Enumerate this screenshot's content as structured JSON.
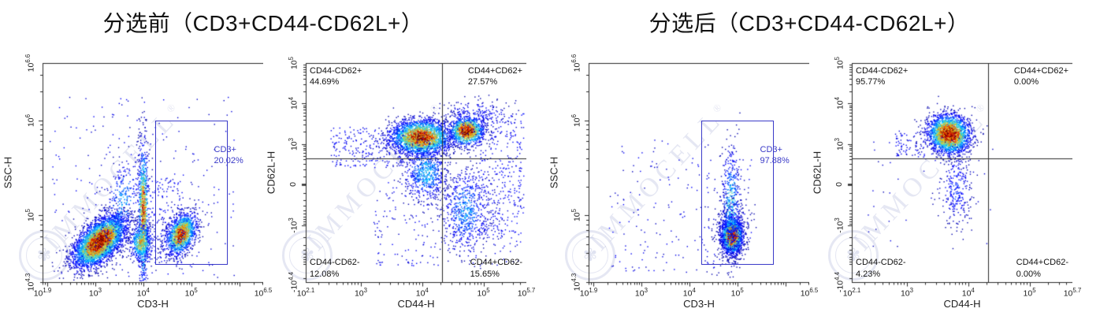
{
  "watermark": {
    "text": "IMMOCELL",
    "registered": "®"
  },
  "colors": {
    "gate": "#3a3ac8",
    "axis": "#2a2a2a",
    "quadrant_line": "#2a2a2a",
    "label_text": "#111111",
    "watermark": "#6273b9",
    "background": "#ffffff"
  },
  "panels": [
    {
      "title": "分选前（CD3+CD44-CD62L+）",
      "plot_refs": [
        0,
        1
      ]
    },
    {
      "title": "分选后（CD3+CD44-CD62L+）",
      "plot_refs": [
        2,
        3
      ]
    }
  ],
  "chart_data": [
    {
      "type": "scatter",
      "style": "flow-pseudocolor-density",
      "xlabel": "CD3-H",
      "ylabel": "SSC-H",
      "x_scale": {
        "kind": "log",
        "min_exp": 1.9,
        "max_exp": 6.5
      },
      "y_scale": {
        "kind": "log",
        "min_exp": 4.3,
        "max_exp": 6.6
      },
      "x_ticks": [
        {
          "label": "10^1.9",
          "exp": 1.9
        },
        {
          "label": "10^3",
          "exp": 3
        },
        {
          "label": "10^4",
          "exp": 4
        },
        {
          "label": "10^5",
          "exp": 5
        },
        {
          "label": "10^6.5",
          "exp": 6.5
        }
      ],
      "y_ticks": [
        {
          "label": "10^4.3",
          "exp": 4.3
        },
        {
          "label": "10^5",
          "exp": 5
        },
        {
          "label": "10^6",
          "exp": 6
        },
        {
          "label": "10^6.6",
          "exp": 6.6
        }
      ],
      "gate": {
        "name": "CD3+",
        "percent": "20.02%",
        "x_from_exp": 4.25,
        "x_to_exp": 5.72,
        "y_from_exp": 4.5,
        "y_to_exp": 6.0
      },
      "populations": [
        {
          "kind": "gauss",
          "cx": 3.08,
          "cy": 4.73,
          "sx": 0.27,
          "sy": 0.11,
          "shear": 0.28,
          "n": 4200,
          "peak": 1.0
        },
        {
          "kind": "gauss",
          "cx": 3.55,
          "cy": 5.15,
          "sx": 0.22,
          "sy": 0.22,
          "shear": 0.5,
          "n": 320,
          "peak": 0.3
        },
        {
          "kind": "gauss",
          "cx": 3.99,
          "cy": 5.02,
          "sx": 0.055,
          "sy": 0.38,
          "shear": 0,
          "n": 950,
          "peak": 0.8
        },
        {
          "kind": "gauss",
          "cx": 3.95,
          "cy": 4.72,
          "sx": 0.12,
          "sy": 0.1,
          "shear": 0,
          "n": 520,
          "peak": 0.6
        },
        {
          "kind": "gauss",
          "cx": 4.78,
          "cy": 4.81,
          "sx": 0.16,
          "sy": 0.1,
          "shear": 0.25,
          "n": 1500,
          "peak": 0.85
        },
        {
          "kind": "uniform",
          "x0": 2.0,
          "x1": 5.9,
          "y0": 4.35,
          "y1": 6.25,
          "n": 240,
          "peak": 0.07
        },
        {
          "kind": "uniform",
          "x0": 4.05,
          "x1": 4.85,
          "y0": 4.5,
          "y1": 5.4,
          "n": 190,
          "peak": 0.1
        }
      ]
    },
    {
      "type": "scatter",
      "style": "flow-pseudocolor-density",
      "xlabel": "CD44-H",
      "ylabel": "CD62L-H",
      "x_scale": {
        "kind": "log",
        "min_exp": 2.1,
        "max_exp": 5.7
      },
      "y_scale": {
        "kind": "biexp",
        "min": -25119,
        "max": 100000,
        "lin": 200
      },
      "x_ticks": [
        {
          "label": "10^2.1",
          "exp": 2.1
        },
        {
          "label": "10^3",
          "exp": 3
        },
        {
          "label": "10^4",
          "exp": 4
        },
        {
          "label": "10^5",
          "exp": 5
        },
        {
          "label": "10^5.7",
          "exp": 5.7
        }
      ],
      "y_ticks": [
        {
          "label": "10^5",
          "value": 100000
        },
        {
          "label": "10^4",
          "value": 10000
        },
        {
          "label": "10^3",
          "value": 1000
        },
        {
          "label": "0",
          "value": 0
        },
        {
          "label": "-10^3",
          "value": -1000
        },
        {
          "label": "-10^4.4",
          "value": -25119
        }
      ],
      "quadrant": {
        "x_value": 21000,
        "y_value": 430,
        "labels": [
          {
            "pos": "tl",
            "name": "CD44-CD62+",
            "percent": "44.69%"
          },
          {
            "pos": "tr",
            "name": "CD44+CD62+",
            "percent": "27.57%"
          },
          {
            "pos": "bl",
            "name": "CD44-CD62-",
            "percent": "12.08%"
          },
          {
            "pos": "br",
            "name": "CD44+CD62-",
            "percent": "15.65%"
          }
        ]
      },
      "populations": [
        {
          "kind": "gauss",
          "cx": 3.97,
          "cy": 2.71,
          "sx": 0.25,
          "sy": 0.5,
          "shear": 0,
          "n": 2600,
          "peak": 0.9
        },
        {
          "kind": "gauss",
          "cx": 4.05,
          "cy": 0.7,
          "sx": 0.18,
          "sy": 0.8,
          "shear": 0,
          "n": 650,
          "peak": 0.35
        },
        {
          "kind": "gauss",
          "cx": 4.72,
          "cy": 3.09,
          "sx": 0.14,
          "sy": 0.42,
          "shear": 0,
          "n": 1150,
          "peak": 0.97
        },
        {
          "kind": "gauss",
          "cx": 4.7,
          "cy": -1.4,
          "sx": 0.2,
          "sy": 1.2,
          "shear": 0,
          "n": 650,
          "peak": 0.3
        },
        {
          "kind": "gauss",
          "cx": 4.85,
          "cy": 4.0,
          "sx": 0.3,
          "sy": 0.5,
          "shear": 0,
          "n": 200,
          "peak": 0.15
        },
        {
          "kind": "uniform",
          "x0": 4.9,
          "x1": 5.65,
          "y0": -3.0,
          "y1": 4.2,
          "n": 330,
          "peak": 0.1
        },
        {
          "kind": "uniform",
          "x0": 2.5,
          "x1": 3.7,
          "y0": 1.0,
          "y1": 3.3,
          "n": 240,
          "peak": 0.1
        },
        {
          "kind": "uniform",
          "x0": 3.2,
          "x1": 5.6,
          "y0": -4.6,
          "y1": 0.2,
          "n": 240,
          "peak": 0.08
        }
      ]
    },
    {
      "type": "scatter",
      "style": "flow-pseudocolor-density",
      "xlabel": "CD3-H",
      "ylabel": "SSC-H",
      "x_scale": {
        "kind": "log",
        "min_exp": 1.9,
        "max_exp": 6.5
      },
      "y_scale": {
        "kind": "log",
        "min_exp": 4.3,
        "max_exp": 6.6
      },
      "x_ticks": [
        {
          "label": "10^1.9",
          "exp": 1.9
        },
        {
          "label": "10^3",
          "exp": 3
        },
        {
          "label": "10^4",
          "exp": 4
        },
        {
          "label": "10^5",
          "exp": 5
        },
        {
          "label": "10^6.5",
          "exp": 6.5
        }
      ],
      "y_ticks": [
        {
          "label": "10^4.3",
          "exp": 4.3
        },
        {
          "label": "10^5",
          "exp": 5
        },
        {
          "label": "10^6",
          "exp": 6
        },
        {
          "label": "10^6.6",
          "exp": 6.6
        }
      ],
      "gate": {
        "name": "CD3+",
        "percent": "97.88%",
        "x_from_exp": 4.25,
        "x_to_exp": 5.72,
        "y_from_exp": 4.5,
        "y_to_exp": 6.0
      },
      "populations": [
        {
          "kind": "gauss",
          "cx": 4.88,
          "cy": 4.79,
          "sx": 0.11,
          "sy": 0.095,
          "shear": 0,
          "n": 1800,
          "peak": 1.0
        },
        {
          "kind": "gauss",
          "cx": 4.86,
          "cy": 5.12,
          "sx": 0.1,
          "sy": 0.3,
          "shear": 0,
          "n": 470,
          "peak": 0.42
        },
        {
          "kind": "gauss",
          "cx": 4.88,
          "cy": 4.86,
          "sx": 0.2,
          "sy": 0.18,
          "shear": 0,
          "n": 280,
          "peak": 0.15
        },
        {
          "kind": "uniform",
          "x0": 2.3,
          "x1": 4.4,
          "y0": 4.4,
          "y1": 5.8,
          "n": 130,
          "peak": 0.07
        },
        {
          "kind": "uniform",
          "x0": 4.3,
          "x1": 5.3,
          "y0": 4.45,
          "y1": 5.6,
          "n": 80,
          "peak": 0.08
        }
      ]
    },
    {
      "type": "scatter",
      "style": "flow-pseudocolor-density",
      "xlabel": "CD44-H",
      "ylabel": "CD62L-H",
      "x_scale": {
        "kind": "log",
        "min_exp": 2.1,
        "max_exp": 5.7
      },
      "y_scale": {
        "kind": "biexp",
        "min": -25119,
        "max": 100000,
        "lin": 200
      },
      "x_ticks": [
        {
          "label": "10^2.1",
          "exp": 2.1
        },
        {
          "label": "10^3",
          "exp": 3
        },
        {
          "label": "10^4",
          "exp": 4
        },
        {
          "label": "10^5",
          "exp": 5
        },
        {
          "label": "10^5.7",
          "exp": 5.7
        }
      ],
      "y_ticks": [
        {
          "label": "10^5",
          "value": 100000
        },
        {
          "label": "10^4",
          "value": 10000
        },
        {
          "label": "10^3",
          "value": 1000
        },
        {
          "label": "0",
          "value": 0
        },
        {
          "label": "-10^3",
          "value": -1000
        },
        {
          "label": "-10^4.4",
          "value": -25119
        }
      ],
      "quadrant": {
        "x_value": 21000,
        "y_value": 430,
        "labels": [
          {
            "pos": "tl",
            "name": "CD44-CD62+",
            "percent": "95.77%"
          },
          {
            "pos": "tr",
            "name": "CD44+CD62+",
            "percent": "0.00%"
          },
          {
            "pos": "bl",
            "name": "CD44-CD62-",
            "percent": "4.23%"
          },
          {
            "pos": "br",
            "name": "CD44+CD62-",
            "percent": "0.00%"
          }
        ]
      },
      "populations": [
        {
          "kind": "gauss",
          "cx": 3.68,
          "cy": 2.9,
          "sx": 0.17,
          "sy": 0.55,
          "shear": -0.2,
          "n": 2400,
          "peak": 1.0
        },
        {
          "kind": "gauss",
          "cx": 3.8,
          "cy": -0.2,
          "sx": 0.13,
          "sy": 1.1,
          "shear": 0,
          "n": 280,
          "peak": 0.18
        },
        {
          "kind": "uniform",
          "x0": 2.8,
          "x1": 3.4,
          "y0": 1.6,
          "y1": 3.1,
          "n": 90,
          "peak": 0.08
        },
        {
          "kind": "uniform",
          "x0": 2.3,
          "x1": 4.4,
          "y0": -3.5,
          "y1": 3.6,
          "n": 50,
          "peak": 0.05
        }
      ]
    }
  ]
}
